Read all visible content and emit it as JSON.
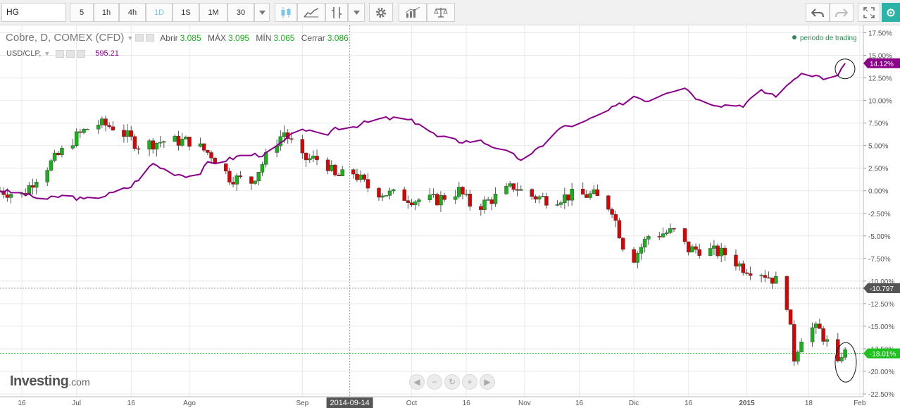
{
  "toolbar": {
    "symbol": "HG",
    "intervals": [
      "5",
      "1h",
      "4h",
      "1D",
      "1S",
      "1M"
    ],
    "active_interval": "1D",
    "count": "30",
    "tools": [
      "candles-icon",
      "area-chart-icon",
      "indicators-icon",
      "dropdown-icon",
      "gear-icon",
      "studies-icon",
      "compare-scale-icon"
    ],
    "right_tools": [
      "undo-icon",
      "redo-icon",
      "fullscreen-icon",
      "settings-icon"
    ]
  },
  "legend": {
    "main": "Cobre, D, COMEX (CFD)",
    "open_label": "Abrir",
    "open": "3.085",
    "high_label": "MÁX",
    "high": "3.095",
    "low_label": "MÍN",
    "low": "3.065",
    "close_label": "Cerrar",
    "close": "3.086",
    "compare": "USD/CLP,",
    "compare_value": "595.21",
    "session": "periodo de trading"
  },
  "logo": {
    "brand": "Investing",
    "domain": ".com"
  },
  "colors": {
    "up": "#19b119",
    "down": "#dd0000",
    "compare": "#8b008b",
    "grid": "#e9e9e9",
    "last_tag": "#1ec11e"
  },
  "chart_data": {
    "type": "candlestick",
    "title": "Cobre, D, COMEX (CFD)",
    "ylabel": "",
    "y_unit": "%",
    "ylim": [
      -22.5,
      17.5
    ],
    "y_ticks": [
      17.5,
      15.0,
      12.5,
      10.0,
      7.5,
      5.0,
      2.5,
      0.0,
      -2.5,
      -5.0,
      -7.5,
      -10.0,
      -12.5,
      -15.0,
      -17.5,
      -20.0,
      -22.5
    ],
    "y_tick_labels": [
      "17.50%",
      "15.00%",
      "12.50%",
      "10.00%",
      "7.50%",
      "5.00%",
      "2.50%",
      "0.00%",
      "-2.50%",
      "-5.00%",
      "-7.50%",
      "-10.00%",
      "-12.50%",
      "-15.00%",
      "-17.50%",
      "-20.00%",
      "-22.50%"
    ],
    "x_range": [
      "2014-06-10",
      "2015-02-02"
    ],
    "x_ticks": [
      {
        "date": "2014-06-16",
        "label": "16"
      },
      {
        "date": "2014-07-01",
        "label": "Jul"
      },
      {
        "date": "2014-07-16",
        "label": "16"
      },
      {
        "date": "2014-08-01",
        "label": "Ago"
      },
      {
        "date": "2014-09-01",
        "label": "Sep"
      },
      {
        "date": "2014-10-01",
        "label": "Oct"
      },
      {
        "date": "2014-10-16",
        "label": "16"
      },
      {
        "date": "2014-11-01",
        "label": "Nov"
      },
      {
        "date": "2014-11-16",
        "label": "16"
      },
      {
        "date": "2014-12-01",
        "label": "Dic"
      },
      {
        "date": "2014-12-16",
        "label": "16"
      },
      {
        "date": "2015-01-01",
        "label": "2015"
      },
      {
        "date": "2015-01-18",
        "label": "18"
      },
      {
        "date": "2015-02-01",
        "label": "Feb"
      }
    ],
    "crosshair": {
      "date": "2014-09-14",
      "label": "2014-09-14"
    },
    "last_values": [
      {
        "series": "USD/CLP",
        "value": 14.12,
        "label": "14.12%"
      },
      {
        "series": "Cobre",
        "value": -18.01,
        "label": "-18.01%"
      },
      {
        "series": "crosshair",
        "value": -10.797,
        "label": "-10.797"
      }
    ],
    "series": [
      {
        "name": "Cobre",
        "kind": "candles",
        "close_anchors": [
          [
            "2014-06-10",
            0.0
          ],
          [
            "2014-06-16",
            -0.5
          ],
          [
            "2014-06-20",
            1.5
          ],
          [
            "2014-06-25",
            3.5
          ],
          [
            "2014-07-01",
            6.0
          ],
          [
            "2014-07-06",
            7.5
          ],
          [
            "2014-07-12",
            7.0
          ],
          [
            "2014-07-18",
            5.0
          ],
          [
            "2014-07-25",
            5.5
          ],
          [
            "2014-08-01",
            5.5
          ],
          [
            "2014-08-07",
            4.0
          ],
          [
            "2014-08-12",
            1.5
          ],
          [
            "2014-08-18",
            1.0
          ],
          [
            "2014-08-24",
            5.0
          ],
          [
            "2014-08-27",
            6.5
          ],
          [
            "2014-09-01",
            3.5
          ],
          [
            "2014-09-07",
            3.5
          ],
          [
            "2014-09-10",
            1.5
          ],
          [
            "2014-09-15",
            2.0
          ],
          [
            "2014-09-20",
            0.0
          ],
          [
            "2014-09-27",
            -0.5
          ],
          [
            "2014-10-02",
            -1.0
          ],
          [
            "2014-10-08",
            -1.0
          ],
          [
            "2014-10-14",
            0.0
          ],
          [
            "2014-10-18",
            -2.0
          ],
          [
            "2014-10-25",
            -0.5
          ],
          [
            "2014-10-29",
            0.5
          ],
          [
            "2014-11-02",
            -0.5
          ],
          [
            "2014-11-08",
            -1.0
          ],
          [
            "2014-11-14",
            -0.5
          ],
          [
            "2014-11-20",
            -0.5
          ],
          [
            "2014-11-25",
            -2.0
          ],
          [
            "2014-11-28",
            -6.0
          ],
          [
            "2014-11-30",
            -8.0
          ],
          [
            "2014-12-05",
            -5.0
          ],
          [
            "2014-12-12",
            -4.5
          ],
          [
            "2014-12-16",
            -6.5
          ],
          [
            "2014-12-20",
            -6.5
          ],
          [
            "2014-12-26",
            -7.0
          ],
          [
            "2014-12-31",
            -8.5
          ],
          [
            "2015-01-05",
            -9.0
          ],
          [
            "2015-01-09",
            -10.0
          ],
          [
            "2015-01-12",
            -12.5
          ],
          [
            "2015-01-14",
            -18.5
          ],
          [
            "2015-01-17",
            -15.0
          ],
          [
            "2015-01-21",
            -15.5
          ],
          [
            "2015-01-24",
            -17.5
          ],
          [
            "2015-01-26",
            -19.5
          ],
          [
            "2015-01-27",
            -18.0
          ],
          [
            "2015-01-28",
            -18.01
          ]
        ]
      },
      {
        "name": "USD/CLP",
        "kind": "line",
        "points": [
          [
            "2014-06-10",
            0.0
          ],
          [
            "2014-06-16",
            -0.3
          ],
          [
            "2014-06-22",
            -1.0
          ],
          [
            "2014-06-28",
            -0.5
          ],
          [
            "2014-07-03",
            -1.0
          ],
          [
            "2014-07-09",
            -0.5
          ],
          [
            "2014-07-13",
            0.0
          ],
          [
            "2014-07-16",
            0.5
          ],
          [
            "2014-07-22",
            3.0
          ],
          [
            "2014-07-27",
            2.0
          ],
          [
            "2014-08-03",
            1.5
          ],
          [
            "2014-08-06",
            3.0
          ],
          [
            "2014-08-12",
            3.5
          ],
          [
            "2014-08-16",
            4.0
          ],
          [
            "2014-08-22",
            4.0
          ],
          [
            "2014-08-27",
            5.5
          ],
          [
            "2014-09-01",
            7.0
          ],
          [
            "2014-09-03",
            6.5
          ],
          [
            "2014-09-07",
            6.0
          ],
          [
            "2014-09-10",
            7.0
          ],
          [
            "2014-09-14",
            7.0
          ],
          [
            "2014-09-18",
            7.5
          ],
          [
            "2014-09-23",
            8.0
          ],
          [
            "2014-09-28",
            8.0
          ],
          [
            "2014-10-03",
            7.5
          ],
          [
            "2014-10-08",
            6.0
          ],
          [
            "2014-10-14",
            5.5
          ],
          [
            "2014-10-20",
            5.5
          ],
          [
            "2014-10-26",
            4.5
          ],
          [
            "2014-10-31",
            3.5
          ],
          [
            "2014-11-03",
            4.0
          ],
          [
            "2014-11-07",
            5.5
          ],
          [
            "2014-11-11",
            7.0
          ],
          [
            "2014-11-17",
            7.5
          ],
          [
            "2014-11-22",
            8.5
          ],
          [
            "2014-11-27",
            9.5
          ],
          [
            "2014-12-01",
            10.5
          ],
          [
            "2014-12-05",
            10.0
          ],
          [
            "2014-12-10",
            11.0
          ],
          [
            "2014-12-15",
            11.5
          ],
          [
            "2014-12-19",
            10.0
          ],
          [
            "2014-12-25",
            9.5
          ],
          [
            "2014-12-31",
            9.5
          ],
          [
            "2015-01-05",
            11.0
          ],
          [
            "2015-01-10",
            10.5
          ],
          [
            "2015-01-14",
            12.5
          ],
          [
            "2015-01-18",
            13.0
          ],
          [
            "2015-01-22",
            12.5
          ],
          [
            "2015-01-25",
            12.0
          ],
          [
            "2015-01-28",
            14.12
          ]
        ]
      }
    ],
    "annotations": [
      {
        "type": "ellipse",
        "near": "2015-01-27",
        "value": 13.5
      },
      {
        "type": "ellipse",
        "near": "2015-01-27",
        "value": -19.0
      }
    ],
    "grid": true,
    "legend_position": "top-left"
  }
}
